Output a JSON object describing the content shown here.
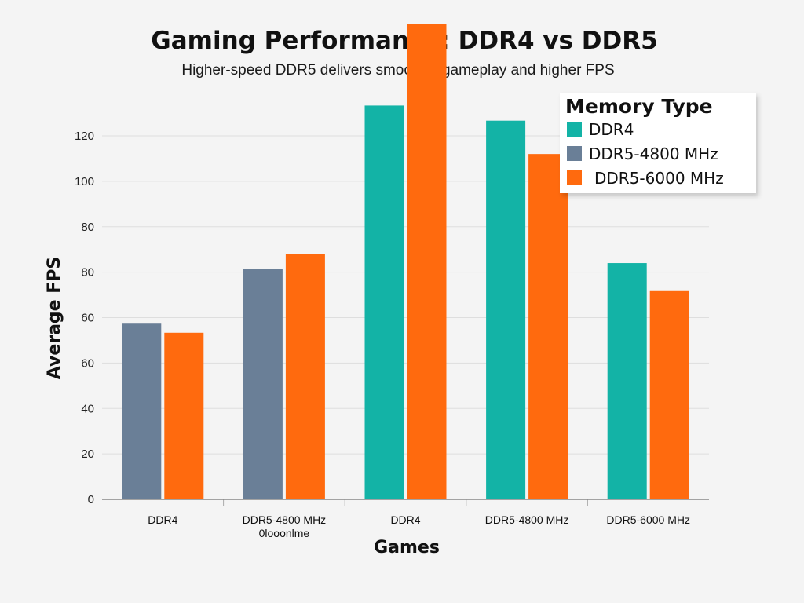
{
  "colors": {
    "DDR4": "#13b3a6",
    "DDR5-4800 MHz": "#6a7f97",
    "DDR5-6000 MHz": "#ff6a0e"
  },
  "chart_data": {
    "type": "bar",
    "title": "Gaming Performance: DDR4 vs DDR5",
    "subtitle": "Higher-speed DDR5 delivers smoother gameplay and higher FPS",
    "xlabel": "Games",
    "ylabel": "Average FPS",
    "yticks": [
      "0",
      "20",
      "40",
      "60",
      "60",
      "80",
      "80",
      "100",
      "120"
    ],
    "ylim": [
      0,
      120
    ],
    "grid": true,
    "legend": {
      "title": "Memory Type",
      "placement": "top-right",
      "entries": [
        "DDR4",
        "DDR5-4800 MHz",
        "DDR5-6000 MHz"
      ]
    },
    "categories": [
      {
        "label": "DDR4",
        "sublabel": ""
      },
      {
        "label": "DDR5-4800 MHz",
        "sublabel": "0looonlme"
      },
      {
        "label": "DDR4",
        "sublabel": ""
      },
      {
        "label": "DDR5-4800 MHz",
        "sublabel": ""
      },
      {
        "label": "DDR5-6000 MHz",
        "sublabel": ""
      }
    ],
    "bars": [
      [
        {
          "series": "DDR5-4800 MHz",
          "value": 58
        },
        {
          "series": "DDR5-6000 MHz",
          "value": 55
        }
      ],
      [
        {
          "series": "DDR5-4800 MHz",
          "value": 76
        },
        {
          "series": "DDR5-6000 MHz",
          "value": 81
        }
      ],
      [
        {
          "series": "DDR4",
          "value": 130
        },
        {
          "series": "DDR5-6000 MHz",
          "value": 157
        }
      ],
      [
        {
          "series": "DDR4",
          "value": 125
        },
        {
          "series": "DDR5-6000 MHz",
          "value": 114
        }
      ],
      [
        {
          "series": "DDR4",
          "value": 78
        },
        {
          "series": "DDR5-6000 MHz",
          "value": 69
        }
      ]
    ]
  }
}
